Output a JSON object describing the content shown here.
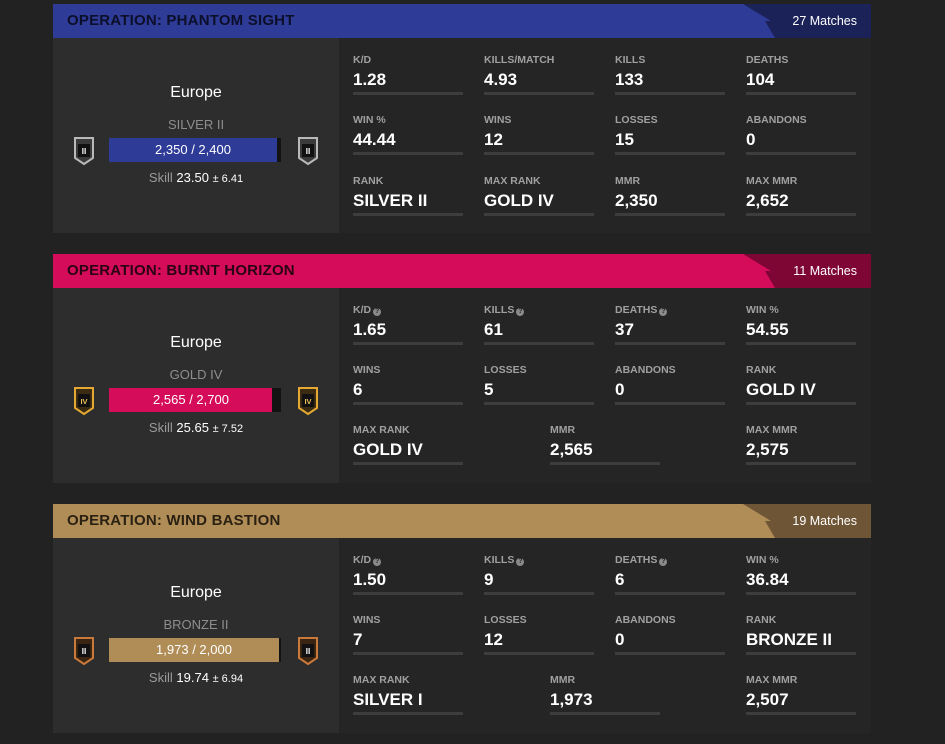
{
  "seasons": [
    {
      "title": "OPERATION: PHANTOM SIGHT",
      "matches": "27 Matches",
      "colors": {
        "header": "#2e3b97",
        "wedge": "#1a2257",
        "fill": "#2e3b97",
        "title_text": "#0c0f2a"
      },
      "region": "Europe",
      "rank_name": "SILVER II",
      "badge_text": "II",
      "badge_icon": "silver-rank-icon",
      "mmr_progress": "2,350 / 2,400",
      "progress_fraction": 0.979,
      "skill_label": "Skill",
      "skill_value": "23.50",
      "skill_deviation": "± 6.41",
      "stats": [
        {
          "label": "K/D",
          "value": "1.28"
        },
        {
          "label": "KILLS/MATCH",
          "value": "4.93"
        },
        {
          "label": "KILLS",
          "value": "133"
        },
        {
          "label": "DEATHS",
          "value": "104"
        },
        {
          "label": "WIN %",
          "value": "44.44"
        },
        {
          "label": "WINS",
          "value": "12"
        },
        {
          "label": "LOSSES",
          "value": "15"
        },
        {
          "label": "ABANDONS",
          "value": "0"
        },
        {
          "label": "RANK",
          "value": "SILVER II"
        },
        {
          "label": "MAX RANK",
          "value": "GOLD IV"
        },
        {
          "label": "MMR",
          "value": "2,350"
        },
        {
          "label": "MAX MMR",
          "value": "2,652"
        }
      ]
    },
    {
      "title": "OPERATION: BURNT HORIZON",
      "matches": "11 Matches",
      "colors": {
        "header": "#d40c5a",
        "wedge": "#7d0635",
        "fill": "#d40c5a",
        "title_text": "#2a0412"
      },
      "region": "Europe",
      "rank_name": "GOLD IV",
      "badge_text": "IV",
      "badge_icon": "gold-rank-icon",
      "mmr_progress": "2,565 / 2,700",
      "progress_fraction": 0.95,
      "skill_label": "Skill",
      "skill_value": "25.65",
      "skill_deviation": "± 7.52",
      "stats": [
        {
          "label": "K/D",
          "value": "1.65",
          "help": "?"
        },
        {
          "label": "KILLS",
          "value": "61",
          "help": "?"
        },
        {
          "label": "DEATHS",
          "value": "37",
          "help": "?"
        },
        {
          "label": "WIN %",
          "value": "54.55"
        },
        {
          "label": "WINS",
          "value": "6"
        },
        {
          "label": "LOSSES",
          "value": "5"
        },
        {
          "label": "ABANDONS",
          "value": "0"
        },
        {
          "label": "RANK",
          "value": "GOLD IV"
        },
        {
          "label": "MAX RANK",
          "value": "GOLD IV"
        },
        {
          "label": "MMR",
          "value": "2,565"
        },
        {
          "label": "MAX MMR",
          "value": "2,575"
        }
      ]
    },
    {
      "title": "OPERATION: WIND BASTION",
      "matches": "19 Matches",
      "colors": {
        "header": "#b08d57",
        "wedge": "#6e5535",
        "fill": "#b08d57",
        "title_text": "#2a2113"
      },
      "region": "Europe",
      "rank_name": "BRONZE II",
      "badge_text": "II",
      "badge_icon": "bronze-rank-icon",
      "mmr_progress": "1,973 / 2,000",
      "progress_fraction": 0.986,
      "skill_label": "Skill",
      "skill_value": "19.74",
      "skill_deviation": "± 6.94",
      "stats": [
        {
          "label": "K/D",
          "value": "1.50",
          "help": "?"
        },
        {
          "label": "KILLS",
          "value": "9",
          "help": "?"
        },
        {
          "label": "DEATHS",
          "value": "6",
          "help": "?"
        },
        {
          "label": "WIN %",
          "value": "36.84"
        },
        {
          "label": "WINS",
          "value": "7"
        },
        {
          "label": "LOSSES",
          "value": "12"
        },
        {
          "label": "ABANDONS",
          "value": "0"
        },
        {
          "label": "RANK",
          "value": "BRONZE II"
        },
        {
          "label": "MAX RANK",
          "value": "SILVER I"
        },
        {
          "label": "MMR",
          "value": "1,973"
        },
        {
          "label": "MAX MMR",
          "value": "2,507"
        }
      ]
    }
  ]
}
